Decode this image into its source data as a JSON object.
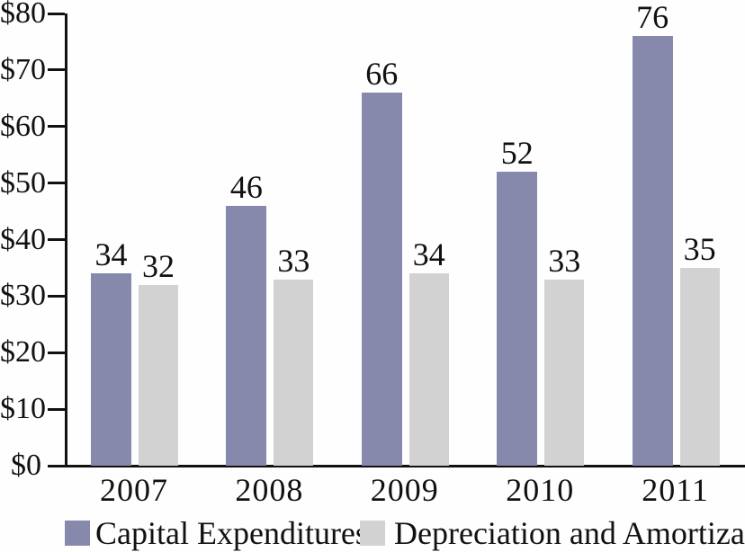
{
  "chart_data": {
    "type": "bar",
    "title": "",
    "xlabel": "",
    "ylabel": "",
    "categories": [
      "2007",
      "2008",
      "2009",
      "2010",
      "2011"
    ],
    "series": [
      {
        "name": "Capital Expenditures",
        "color": "#8789AC",
        "values": [
          34,
          46,
          66,
          52,
          76
        ]
      },
      {
        "name": "Depreciation and Amortization",
        "color": "#D2D2D2",
        "values": [
          32,
          33,
          34,
          33,
          35
        ]
      }
    ],
    "y_axis": {
      "min": 0,
      "max": 80,
      "step": 10,
      "tick_labels": [
        "$0",
        "$10",
        "$20",
        "$30",
        "$40",
        "$50",
        "$60",
        "$70",
        "$80"
      ]
    },
    "grid": false,
    "legend_position": "bottom",
    "data_labels_shown": true,
    "axis_color": "#111111",
    "background_color": "#FEFEFE"
  },
  "legend": {
    "capex_label": "Capital Expenditures",
    "da_label": "Depreciation and Amortization"
  }
}
